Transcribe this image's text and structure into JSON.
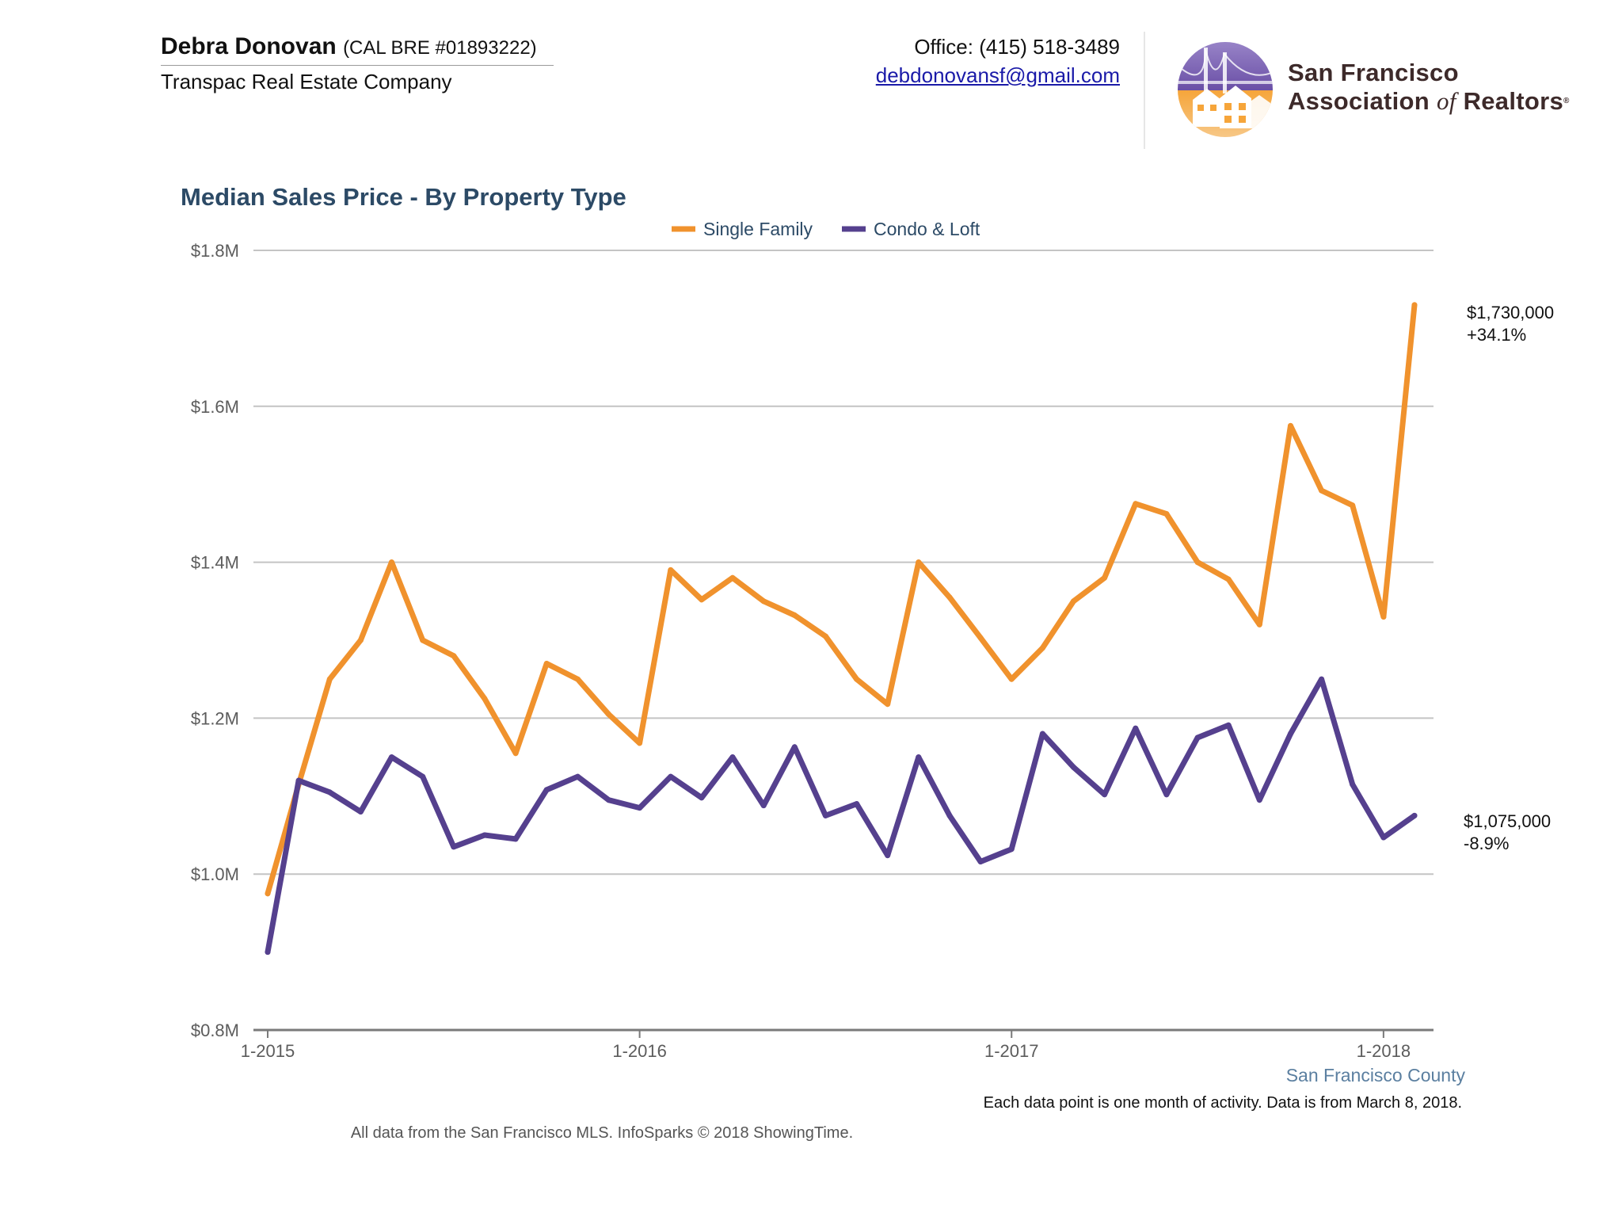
{
  "header": {
    "agent_name": "Debra Donovan",
    "agent_license": "(CAL BRE #01893222)",
    "company": "Transpac Real Estate Company",
    "office_phone": "Office: (415) 518-3489",
    "email": "debdonovansf@gmail.com",
    "logo": {
      "line1": "San Francisco",
      "line2_a": "Association",
      "line2_of": "of",
      "line2_b": "Realtors",
      "registered": "®",
      "icon": "golden-gate-bridge-houses-logo"
    }
  },
  "chart_data": {
    "type": "line",
    "title": "Median Sales Price - By Property Type",
    "xlabel": "",
    "ylabel": "",
    "ylim": [
      800000,
      1800000
    ],
    "yticks": [
      800000,
      1000000,
      1200000,
      1400000,
      1600000,
      1800000
    ],
    "ytick_labels": [
      "$0.8M",
      "$1.0M",
      "$1.2M",
      "$1.4M",
      "$1.6M",
      "$1.8M"
    ],
    "xtick_labels": [
      "1-2015",
      "1-2016",
      "1-2017",
      "1-2018"
    ],
    "xtick_dates": [
      "2015-01",
      "2016-01",
      "2017-01",
      "2018-01"
    ],
    "x": [
      "2015-01",
      "2015-02",
      "2015-03",
      "2015-04",
      "2015-05",
      "2015-06",
      "2015-07",
      "2015-08",
      "2015-09",
      "2015-10",
      "2015-11",
      "2015-12",
      "2016-01",
      "2016-02",
      "2016-03",
      "2016-04",
      "2016-05",
      "2016-06",
      "2016-07",
      "2016-08",
      "2016-09",
      "2016-10",
      "2016-11",
      "2016-12",
      "2017-01",
      "2017-02",
      "2017-03",
      "2017-04",
      "2017-05",
      "2017-06",
      "2017-07",
      "2017-08",
      "2017-09",
      "2017-10",
      "2017-11",
      "2017-12",
      "2018-01",
      "2018-02"
    ],
    "grid": true,
    "legend_position": "top-center",
    "series": [
      {
        "name": "Single Family",
        "color": "#f0922d",
        "values": [
          975000,
          1115000,
          1250000,
          1300000,
          1400000,
          1300000,
          1280000,
          1225000,
          1155000,
          1270000,
          1250000,
          1205000,
          1168000,
          1390000,
          1352000,
          1380000,
          1350000,
          1332000,
          1305000,
          1250000,
          1218000,
          1400000,
          1355000,
          1303000,
          1250000,
          1290000,
          1350000,
          1380000,
          1475000,
          1462000,
          1400000,
          1378000,
          1320000,
          1575000,
          1492000,
          1473000,
          1330000,
          1730000
        ],
        "end_label": "$1,730,000",
        "end_change": "+34.1%"
      },
      {
        "name": "Condo & Loft",
        "color": "#55408e",
        "values": [
          900000,
          1120000,
          1105000,
          1080000,
          1150000,
          1125000,
          1035000,
          1050000,
          1045000,
          1108000,
          1125000,
          1095000,
          1085000,
          1125000,
          1098000,
          1150000,
          1088000,
          1163000,
          1075000,
          1090000,
          1024000,
          1150000,
          1075000,
          1016000,
          1032000,
          1180000,
          1137000,
          1102000,
          1187000,
          1102000,
          1175000,
          1191000,
          1095000,
          1180000,
          1250000,
          1115000,
          1047000,
          1075000
        ],
        "end_label": "$1,075,000",
        "end_change": "-8.9%"
      }
    ],
    "annotations": [
      "San Francisco County",
      "Each data point is one month of activity. Data is from March 8, 2018."
    ]
  },
  "footer": {
    "county": "San Francisco County",
    "note": "Each data point is one month of activity. Data is from March 8, 2018.",
    "source": "All data from the San Francisco MLS. InfoSparks © 2018 ShowingTime."
  }
}
